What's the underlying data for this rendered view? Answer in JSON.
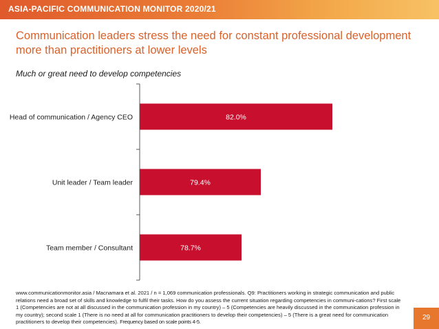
{
  "header": {
    "title": "ASIA-PACIFIC COMMUNICATION MONITOR 2020/21"
  },
  "slide": {
    "title": "Communication leaders stress the need for constant professional development more than practitioners at lower levels",
    "subtitle": "Much or great need to develop competencies",
    "footnote": "www.communicationmonitor.asia / Macnamara et al. 2021 / n = 1,069 communication professionals. Q9: Practitioners working in strategic communication and public relations need a broad set of skills and knowledge to fulfil their tasks. How do you assess the current situation regarding competencies in communi-cations? First scale 1 (Competencies are not at all discussed in the communication profession in my country) – 5 (Competencies are heavily discussed in the communication profession in my country); second scale 1 (There is no need at all for communication practitioners to develop their competencies) – 5 (There is a great need for communication practitioners to develop their competencies).",
    "footnote_tail": "Frequency based on scale points 4-5.",
    "page_number": "29"
  },
  "colors": {
    "bar": "#c8102e",
    "title": "#d9622b",
    "accent": "#e8772e"
  },
  "chart_data": {
    "type": "bar",
    "orientation": "horizontal",
    "categories": [
      "Head of communication / Agency CEO",
      "Unit leader / Team leader",
      "Team member / Consultant"
    ],
    "values": [
      82.0,
      79.4,
      78.7
    ],
    "data_labels": [
      "82.0%",
      "79.4%",
      "78.7%"
    ],
    "xlim": [
      75,
      85
    ],
    "grid": false,
    "legend": "none"
  }
}
